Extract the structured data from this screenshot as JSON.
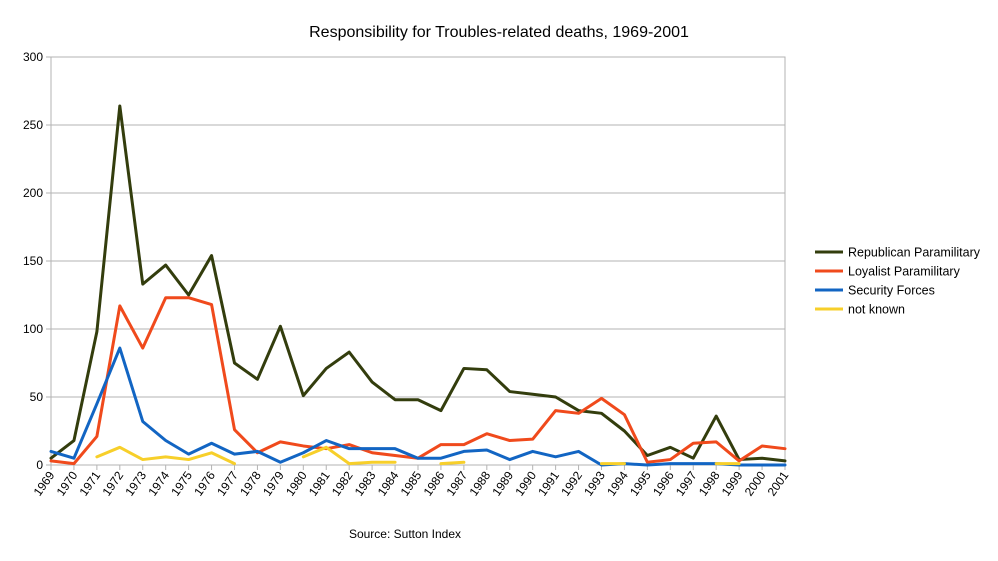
{
  "chart_data": {
    "type": "line",
    "title": "Responsibility for Troubles-related deaths, 1969-2001",
    "source": "Source: Sutton Index",
    "xlabel": "",
    "ylabel": "",
    "ylim": [
      0,
      300
    ],
    "yticks": [
      0,
      50,
      100,
      150,
      200,
      250,
      300
    ],
    "grid": true,
    "legend_position": "right",
    "categories": [
      "1969",
      "1970",
      "1971",
      "1972",
      "1973",
      "1974",
      "1975",
      "1976",
      "1977",
      "1978",
      "1979",
      "1980",
      "1981",
      "1982",
      "1983",
      "1984",
      "1985",
      "1986",
      "1987",
      "1988",
      "1989",
      "1990",
      "1991",
      "1992",
      "1993",
      "1994",
      "1995",
      "1996",
      "1997",
      "1998",
      "1999",
      "2000",
      "2001"
    ],
    "series": [
      {
        "name": "Republican Paramilitary",
        "color": "#333d0d",
        "values": [
          5,
          18,
          98,
          264,
          133,
          147,
          125,
          154,
          75,
          63,
          102,
          51,
          71,
          83,
          61,
          48,
          48,
          40,
          71,
          70,
          54,
          52,
          50,
          40,
          38,
          25,
          7,
          13,
          5,
          36,
          4,
          5,
          3
        ]
      },
      {
        "name": "Loyalist Paramilitary",
        "color": "#f04a1c",
        "values": [
          3,
          1,
          21,
          117,
          86,
          123,
          123,
          118,
          26,
          9,
          17,
          14,
          12,
          15,
          9,
          7,
          5,
          15,
          15,
          23,
          18,
          19,
          40,
          38,
          49,
          37,
          2,
          4,
          16,
          17,
          3,
          14,
          12
        ]
      },
      {
        "name": "Security Forces",
        "color": "#1265c3",
        "values": [
          10,
          5,
          45,
          86,
          32,
          18,
          8,
          16,
          8,
          10,
          2,
          9,
          18,
          12,
          12,
          12,
          5,
          5,
          10,
          11,
          4,
          10,
          6,
          10,
          0,
          1,
          0,
          1,
          1,
          1,
          0,
          0,
          0
        ]
      },
      {
        "name": "not known",
        "color": "#f7cf2a",
        "values": [
          null,
          null,
          6,
          13,
          4,
          6,
          4,
          9,
          1,
          null,
          null,
          6,
          13,
          1,
          2,
          2,
          null,
          1,
          2,
          null,
          null,
          null,
          null,
          null,
          1,
          1,
          null,
          null,
          null,
          1,
          1,
          null,
          null
        ]
      }
    ]
  }
}
